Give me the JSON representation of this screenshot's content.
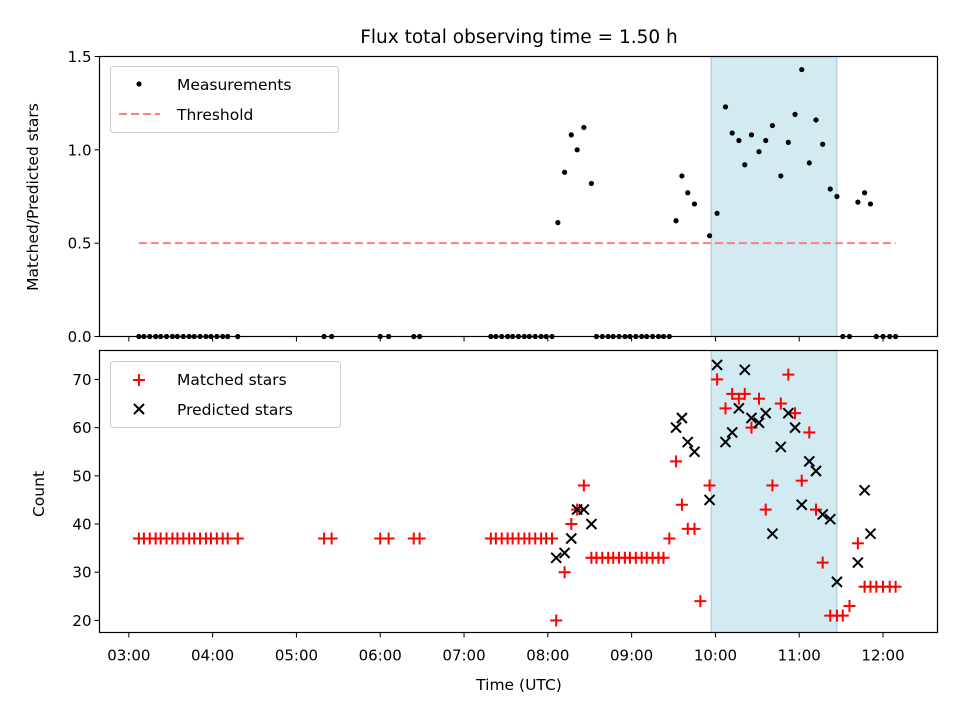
{
  "title": "Flux total observing time = 1.50 h",
  "colors": {
    "measurement": "#000000",
    "threshold": "#ff7f7f",
    "matched": "#ff0000",
    "predicted": "#000000",
    "highlight": "#add8e6"
  },
  "chart_data": [
    {
      "type": "scatter",
      "ylabel": "Matched/Predicted stars",
      "ylim": [
        0,
        1.5
      ],
      "yticks": [
        0.0,
        0.5,
        1.0,
        1.5
      ],
      "ytick_labels": [
        "0.0",
        "0.5",
        "1.0",
        "1.5"
      ],
      "xlim_hours": [
        2.65,
        12.65
      ],
      "highlight_span_hours": [
        9.95,
        11.45
      ],
      "legend": {
        "placement": "upper-left",
        "entries": [
          "Measurements",
          "Threshold"
        ]
      },
      "threshold": {
        "name": "Threshold",
        "value": 0.5,
        "x_range_hours": [
          3.12,
          12.15
        ]
      },
      "series": [
        {
          "name": "Measurements",
          "x_hours": [
            3.12,
            3.18,
            3.25,
            3.32,
            3.38,
            3.45,
            3.52,
            3.58,
            3.65,
            3.72,
            3.78,
            3.85,
            3.92,
            3.98,
            4.05,
            4.12,
            4.18,
            4.3,
            5.33,
            5.42,
            6.0,
            6.1,
            6.4,
            6.47,
            7.32,
            7.38,
            7.45,
            7.52,
            7.58,
            7.65,
            7.72,
            7.78,
            7.85,
            7.92,
            7.98,
            8.05,
            8.12,
            8.2,
            8.28,
            8.35,
            8.43,
            8.52,
            8.58,
            8.65,
            8.72,
            8.78,
            8.85,
            8.92,
            8.98,
            9.05,
            9.12,
            9.18,
            9.25,
            9.32,
            9.38,
            9.45,
            9.53,
            9.6,
            9.67,
            9.75,
            9.93,
            10.02,
            10.12,
            10.2,
            10.28,
            10.35,
            10.43,
            10.52,
            10.6,
            10.68,
            10.78,
            10.87,
            10.95,
            11.03,
            11.12,
            11.2,
            11.28,
            11.37,
            11.45,
            11.52,
            11.6,
            11.7,
            11.78,
            11.85,
            11.92,
            12.0,
            12.08,
            12.15
          ],
          "y": [
            0,
            0,
            0,
            0,
            0,
            0,
            0,
            0,
            0,
            0,
            0,
            0,
            0,
            0,
            0,
            0,
            0,
            0,
            0,
            0,
            0,
            0,
            0,
            0,
            0,
            0,
            0,
            0,
            0,
            0,
            0,
            0,
            0,
            0,
            0,
            0,
            0.61,
            0.88,
            1.08,
            1.0,
            1.12,
            0.82,
            0,
            0,
            0,
            0,
            0,
            0,
            0,
            0,
            0,
            0,
            0,
            0,
            0,
            0,
            0.62,
            0.86,
            0.77,
            0.71,
            0.54,
            0.66,
            1.23,
            1.09,
            1.05,
            0.92,
            1.08,
            0.99,
            1.05,
            1.13,
            0.86,
            1.04,
            1.19,
            1.43,
            0.93,
            1.16,
            1.03,
            0.79,
            0.75,
            0,
            0,
            0.72,
            0.77,
            0.71,
            0,
            0,
            0,
            0
          ]
        }
      ]
    },
    {
      "type": "scatter",
      "ylabel": "Count",
      "xlabel": "Time (UTC)",
      "ylim": [
        17.5,
        76
      ],
      "yticks": [
        20,
        30,
        40,
        50,
        60,
        70
      ],
      "ytick_labels": [
        "20",
        "30",
        "40",
        "50",
        "60",
        "70"
      ],
      "xlim_hours": [
        2.65,
        12.65
      ],
      "xticks_hours": [
        3,
        4,
        5,
        6,
        7,
        8,
        9,
        10,
        11,
        12
      ],
      "xtick_labels": [
        "03:00",
        "04:00",
        "05:00",
        "06:00",
        "07:00",
        "08:00",
        "09:00",
        "10:00",
        "11:00",
        "12:00"
      ],
      "highlight_span_hours": [
        9.95,
        11.45
      ],
      "legend": {
        "placement": "upper-left",
        "entries": [
          "Matched stars",
          "Predicted stars"
        ]
      },
      "series": [
        {
          "name": "Matched stars",
          "marker": "plus",
          "x_hours": [
            3.12,
            3.18,
            3.25,
            3.32,
            3.38,
            3.45,
            3.52,
            3.58,
            3.65,
            3.72,
            3.78,
            3.85,
            3.92,
            3.98,
            4.05,
            4.12,
            4.18,
            4.3,
            5.33,
            5.42,
            6.0,
            6.1,
            6.4,
            6.47,
            7.32,
            7.38,
            7.45,
            7.52,
            7.58,
            7.65,
            7.72,
            7.78,
            7.85,
            7.92,
            7.98,
            8.05,
            8.1,
            8.2,
            8.28,
            8.35,
            8.43,
            8.52,
            8.58,
            8.65,
            8.72,
            8.78,
            8.85,
            8.92,
            8.98,
            9.05,
            9.12,
            9.18,
            9.25,
            9.32,
            9.38,
            9.45,
            9.53,
            9.6,
            9.67,
            9.75,
            9.82,
            9.93,
            10.02,
            10.12,
            10.2,
            10.28,
            10.35,
            10.43,
            10.52,
            10.6,
            10.68,
            10.78,
            10.87,
            10.95,
            11.03,
            11.12,
            11.2,
            11.28,
            11.37,
            11.45,
            11.52,
            11.6,
            11.7,
            11.78,
            11.85,
            11.92,
            12.0,
            12.08,
            12.15
          ],
          "y": [
            37,
            37,
            37,
            37,
            37,
            37,
            37,
            37,
            37,
            37,
            37,
            37,
            37,
            37,
            37,
            37,
            37,
            37,
            37,
            37,
            37,
            37,
            37,
            37,
            37,
            37,
            37,
            37,
            37,
            37,
            37,
            37,
            37,
            37,
            37,
            37,
            20,
            30,
            40,
            43,
            48,
            33,
            33,
            33,
            33,
            33,
            33,
            33,
            33,
            33,
            33,
            33,
            33,
            33,
            33,
            37,
            53,
            44,
            39,
            39,
            24,
            48,
            70,
            64,
            67,
            66,
            67,
            60,
            66,
            43,
            48,
            65,
            71,
            63,
            49,
            59,
            43,
            32,
            21,
            21,
            21,
            23,
            36,
            27,
            27,
            27,
            27,
            27,
            27
          ]
        },
        {
          "name": "Predicted stars",
          "marker": "x",
          "x_hours": [
            8.1,
            8.2,
            8.28,
            8.35,
            8.43,
            8.52,
            9.53,
            9.6,
            9.67,
            9.75,
            9.93,
            10.02,
            10.12,
            10.2,
            10.28,
            10.35,
            10.43,
            10.52,
            10.6,
            10.68,
            10.78,
            10.87,
            10.95,
            11.03,
            11.12,
            11.2,
            11.28,
            11.37,
            11.45,
            11.7,
            11.78,
            11.85
          ],
          "y": [
            33,
            34,
            37,
            43,
            43,
            40,
            60,
            62,
            57,
            55,
            45,
            73,
            57,
            59,
            64,
            72,
            62,
            61,
            63,
            38,
            56,
            63,
            60,
            44,
            53,
            51,
            42,
            41,
            28,
            32,
            47,
            38
          ]
        }
      ]
    }
  ]
}
